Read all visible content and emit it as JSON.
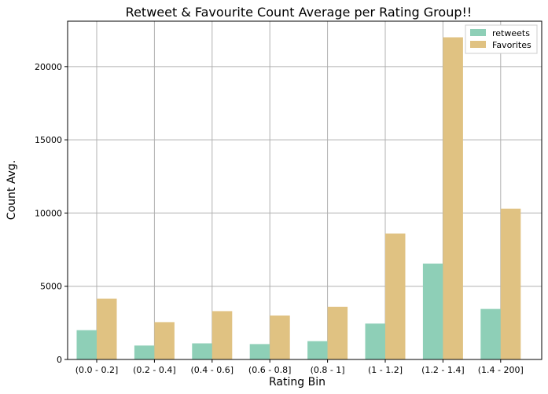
{
  "chart_data": {
    "type": "bar",
    "title": "Retweet & Favourite Count Average per Rating Group!!",
    "xlabel": "Rating Bin",
    "ylabel": "Count Avg.",
    "categories": [
      "(0.0 - 0.2]",
      "(0.2 - 0.4]",
      "(0.4 - 0.6]",
      "(0.6 - 0.8]",
      "(0.8 - 1]",
      "(1 - 1.2]",
      "(1.2 - 1.4]",
      "(1.4 - 200]"
    ],
    "series": [
      {
        "name": "retweets",
        "color": "#8ecfb7",
        "values": [
          2000,
          950,
          1100,
          1050,
          1250,
          2450,
          6550,
          3450
        ]
      },
      {
        "name": "Favorites",
        "color": "#e0c282",
        "values": [
          4150,
          2550,
          3300,
          3000,
          3600,
          8600,
          22000,
          10300
        ]
      }
    ],
    "ylim": [
      0,
      23100
    ],
    "yticks": [
      0,
      5000,
      10000,
      15000,
      20000
    ],
    "ytick_labels": [
      "0",
      "5000",
      "10000",
      "15000",
      "20000"
    ],
    "grid": true,
    "legend": "top-right"
  }
}
